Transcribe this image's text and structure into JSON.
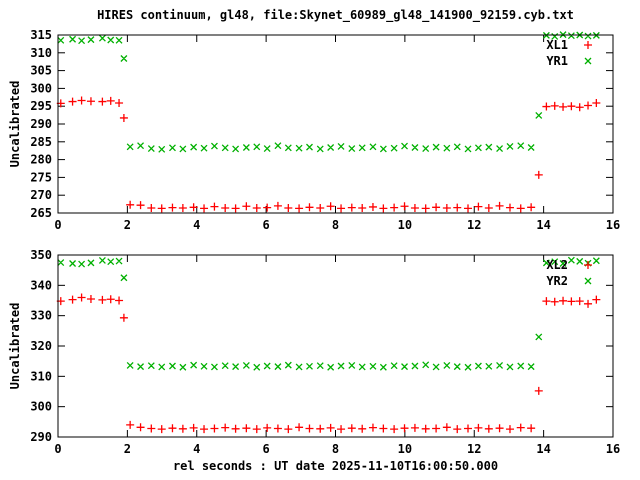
{
  "title": "HIRES continuum, gl48, file:Skynet_60989_gl48_141900_92159.cyb.txt",
  "xlabel": "rel seconds : UT date 2025-11-10T16:00:50.000",
  "colors": {
    "series1": "#ff0000",
    "series2": "#00b000",
    "axis": "#000000",
    "background": "#ffffff"
  },
  "chart_data": [
    {
      "type": "scatter",
      "panel": "top",
      "ylabel": "Uncalibrated",
      "ylim": [
        265,
        315
      ],
      "xlim": [
        0,
        16
      ],
      "yticks": [
        265,
        270,
        275,
        280,
        285,
        290,
        295,
        300,
        305,
        310,
        315
      ],
      "xticks": [
        0,
        2,
        4,
        6,
        8,
        10,
        12,
        14,
        16
      ],
      "grid": false,
      "legend_position": "top-right",
      "x": [
        0.08,
        0.42,
        0.68,
        0.95,
        1.28,
        1.52,
        1.76,
        1.9,
        2.08,
        2.38,
        2.69,
        2.99,
        3.3,
        3.6,
        3.91,
        4.21,
        4.51,
        4.82,
        5.12,
        5.43,
        5.73,
        6.03,
        6.34,
        6.64,
        6.95,
        7.25,
        7.56,
        7.86,
        8.16,
        8.47,
        8.77,
        9.08,
        9.38,
        9.69,
        9.99,
        10.29,
        10.6,
        10.9,
        11.21,
        11.51,
        11.82,
        12.12,
        12.42,
        12.73,
        13.03,
        13.34,
        13.64,
        13.86,
        14.08,
        14.32,
        14.56,
        14.8,
        15.04,
        15.28,
        15.52
      ],
      "series": [
        {
          "name": "XL1",
          "color": "#ff0000",
          "marker": "plus",
          "y": [
            295.8,
            296.3,
            296.6,
            296.4,
            296.3,
            296.5,
            295.9,
            291.7,
            267.3,
            267.2,
            266.4,
            266.3,
            266.5,
            266.4,
            266.6,
            266.3,
            266.8,
            266.4,
            266.3,
            266.9,
            266.4,
            266.5,
            267.0,
            266.4,
            266.3,
            266.6,
            266.4,
            266.9,
            266.3,
            266.5,
            266.4,
            266.7,
            266.3,
            266.5,
            266.9,
            266.4,
            266.3,
            266.6,
            266.4,
            266.5,
            266.3,
            266.8,
            266.4,
            267.0,
            266.5,
            266.3,
            266.6,
            275.7,
            294.9,
            295.1,
            294.8,
            295.0,
            294.7,
            295.2,
            295.9
          ]
        },
        {
          "name": "YR1",
          "color": "#00b000",
          "marker": "cross",
          "y": [
            313.5,
            313.8,
            313.4,
            313.7,
            314.1,
            313.6,
            313.5,
            308.4,
            283.6,
            283.9,
            283.1,
            282.9,
            283.3,
            283.0,
            283.5,
            283.2,
            283.8,
            283.3,
            283.0,
            283.4,
            283.6,
            283.1,
            283.9,
            283.3,
            283.2,
            283.5,
            283.0,
            283.4,
            283.7,
            283.1,
            283.3,
            283.6,
            283.0,
            283.2,
            283.8,
            283.4,
            283.1,
            283.5,
            283.2,
            283.6,
            283.0,
            283.3,
            283.5,
            283.1,
            283.7,
            283.9,
            283.4,
            292.4,
            314.9,
            314.6,
            315.1,
            314.8,
            315.0,
            314.7,
            314.9
          ]
        }
      ]
    },
    {
      "type": "scatter",
      "panel": "bottom",
      "ylabel": "Uncalibrated",
      "ylim": [
        290,
        350
      ],
      "xlim": [
        0,
        16
      ],
      "yticks": [
        290,
        300,
        310,
        320,
        330,
        340,
        350
      ],
      "xticks": [
        0,
        2,
        4,
        6,
        8,
        10,
        12,
        14,
        16
      ],
      "grid": false,
      "legend_position": "top-right",
      "x": [
        0.08,
        0.42,
        0.68,
        0.95,
        1.28,
        1.52,
        1.76,
        1.9,
        2.08,
        2.38,
        2.69,
        2.99,
        3.3,
        3.6,
        3.91,
        4.21,
        4.51,
        4.82,
        5.12,
        5.43,
        5.73,
        6.03,
        6.34,
        6.64,
        6.95,
        7.25,
        7.56,
        7.86,
        8.16,
        8.47,
        8.77,
        9.08,
        9.38,
        9.69,
        9.99,
        10.29,
        10.6,
        10.9,
        11.21,
        11.51,
        11.82,
        12.12,
        12.42,
        12.73,
        13.03,
        13.34,
        13.64,
        13.86,
        14.08,
        14.32,
        14.56,
        14.8,
        15.04,
        15.28,
        15.52
      ],
      "series": [
        {
          "name": "XL2",
          "color": "#ff0000",
          "marker": "plus",
          "y": [
            334.8,
            335.3,
            336.0,
            335.5,
            335.2,
            335.4,
            335.0,
            329.3,
            294.0,
            293.2,
            292.8,
            292.6,
            292.9,
            292.7,
            293.0,
            292.6,
            292.8,
            293.1,
            292.7,
            292.9,
            292.6,
            293.0,
            292.8,
            292.6,
            293.2,
            292.8,
            292.7,
            293.0,
            292.6,
            292.9,
            292.7,
            293.1,
            292.8,
            292.6,
            292.9,
            293.0,
            292.7,
            292.8,
            293.2,
            292.6,
            292.8,
            293.0,
            292.7,
            292.9,
            292.6,
            293.1,
            292.9,
            305.2,
            334.8,
            334.6,
            334.9,
            334.7,
            334.8,
            333.9,
            335.3
          ]
        },
        {
          "name": "YR2",
          "color": "#00b000",
          "marker": "cross",
          "y": [
            347.5,
            347.2,
            347.0,
            347.4,
            348.2,
            347.8,
            348.0,
            342.5,
            313.6,
            313.2,
            313.5,
            313.1,
            313.4,
            313.0,
            313.7,
            313.3,
            313.1,
            313.5,
            313.2,
            313.6,
            313.0,
            313.4,
            313.2,
            313.7,
            313.1,
            313.3,
            313.5,
            313.0,
            313.4,
            313.6,
            313.1,
            313.3,
            313.0,
            313.5,
            313.2,
            313.4,
            313.8,
            313.1,
            313.6,
            313.2,
            313.0,
            313.4,
            313.3,
            313.6,
            313.1,
            313.4,
            313.2,
            323.0,
            347.4,
            347.8,
            347.2,
            348.3,
            347.9,
            347.3,
            348.1
          ]
        }
      ]
    }
  ]
}
